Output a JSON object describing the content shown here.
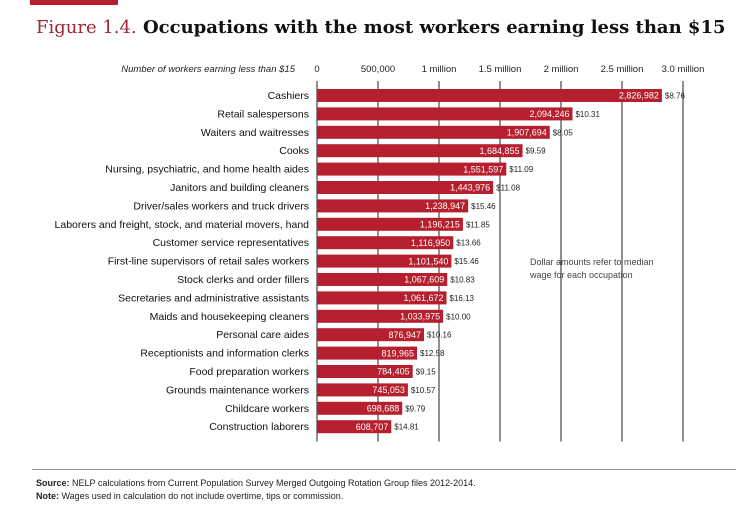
{
  "figure": {
    "number": "Figure 1.4.",
    "title": "Occupations with the most workers earning less than $15"
  },
  "chart_data": {
    "type": "bar",
    "orientation": "horizontal",
    "xlabel": "Number of workers earning less than $15",
    "xlim": [
      0,
      3000000
    ],
    "ticks": [
      {
        "value": 0,
        "label": "0"
      },
      {
        "value": 500000,
        "label": "500,000"
      },
      {
        "value": 1000000,
        "label": "1 million"
      },
      {
        "value": 1500000,
        "label": "1.5 million"
      },
      {
        "value": 2000000,
        "label": "2 million"
      },
      {
        "value": 2500000,
        "label": "2.5 million"
      },
      {
        "value": 3000000,
        "label": "3.0 million"
      }
    ],
    "grid": true,
    "bar_color": "#b61f2e",
    "categories": [
      "Cashiers",
      "Retail salespersons",
      "Waiters and waitresses",
      "Cooks",
      "Nursing, psychiatric, and home health aides",
      "Janitors and building cleaners",
      "Driver/sales workers and truck drivers",
      "Laborers and freight, stock, and material movers, hand",
      "Customer service representatives",
      "First-line supervisors of retail sales workers",
      "Stock clerks and order fillers",
      "Secretaries and administrative assistants",
      "Maids and housekeeping cleaners",
      "Personal care aides",
      "Receptionists and information clerks",
      "Food preparation workers",
      "Grounds maintenance workers",
      "Childcare workers",
      "Construction laborers"
    ],
    "values": [
      2826982,
      2094246,
      1907694,
      1684855,
      1551597,
      1443976,
      1238947,
      1196215,
      1116950,
      1101540,
      1067609,
      1061672,
      1033975,
      876947,
      819965,
      784405,
      745053,
      698688,
      608707
    ],
    "value_labels": [
      "2,826,982",
      "2,094,246",
      "1,907,694",
      "1,684,855",
      "1,551,597",
      "1,443,976",
      "1,238,947",
      "1,196,215",
      "1,116,950",
      "1,101,540",
      "1,067,609",
      "1,061,672",
      "1,033,975",
      "876,947",
      "819,965",
      "784,405",
      "745,053",
      "698,688",
      "608,707"
    ],
    "wages": [
      "$8.76",
      "$10.31",
      "$8.05",
      "$9.59",
      "$11.09",
      "$11.08",
      "$15.46",
      "$11.85",
      "$13.66",
      "$15.46",
      "$10.83",
      "$16.13",
      "$10.00",
      "$10.16",
      "$12.58",
      "$9.15",
      "$10.57",
      "$9.79",
      "$14.81"
    ],
    "annotation": "Dollar amounts refer to median wage for each occupation"
  },
  "footer": {
    "source_label": "Source:",
    "source_text": "NELP calculations from Current Population Survey Merged Outgoing Rotation Group files 2012-2014.",
    "note_label": "Note:",
    "note_text": "Wages used in calculation do not include overtime, tips or commission."
  }
}
